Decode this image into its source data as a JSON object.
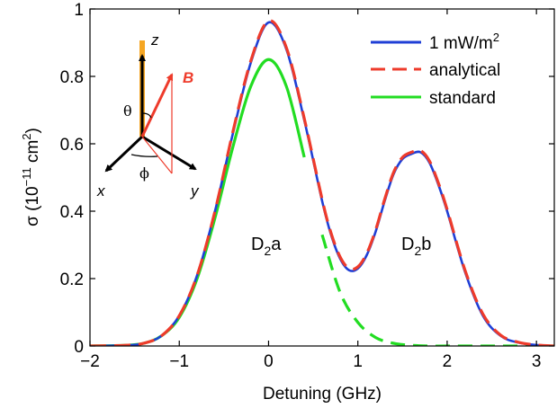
{
  "chart_data": {
    "type": "line",
    "xlabel": "Detuning (GHz)",
    "ylabel": "σ  (10^−11 cm^2)",
    "ylabel_parts": {
      "pre": "σ  (10",
      "exp1": "−11",
      "mid": " cm",
      "exp2": "2",
      "post": ")"
    },
    "xlim": [
      -2,
      3.2
    ],
    "ylim": [
      0,
      1
    ],
    "xticks": [
      -2,
      -1,
      0,
      1,
      2,
      3
    ],
    "xtick_labels": [
      "−2",
      "−1",
      "0",
      "1",
      "2",
      "3"
    ],
    "yticks": [
      0,
      0.2,
      0.4,
      0.6,
      0.8,
      1
    ],
    "ytick_labels": [
      "0",
      "0.2",
      "0.4",
      "0.6",
      "0.8",
      "1"
    ],
    "grid": false,
    "legend_position": "top-right",
    "series": [
      {
        "name": "1 mW/m^2",
        "legend_parts": {
          "base": "1 mW/m",
          "sup": "2"
        },
        "color": "#1f3fd6",
        "style": "solid",
        "x": [
          -2.0,
          -1.6,
          -1.4,
          -1.2,
          -1.0,
          -0.8,
          -0.6,
          -0.4,
          -0.2,
          0.0,
          0.2,
          0.4,
          0.6,
          0.7,
          0.8,
          0.9,
          1.0,
          1.1,
          1.2,
          1.3,
          1.4,
          1.5,
          1.6,
          1.7,
          1.8,
          1.9,
          2.0,
          2.2,
          2.4,
          2.6,
          2.8,
          3.0,
          3.2
        ],
        "y": [
          0.0,
          0.002,
          0.008,
          0.03,
          0.09,
          0.21,
          0.4,
          0.63,
          0.84,
          0.96,
          0.88,
          0.67,
          0.43,
          0.33,
          0.26,
          0.225,
          0.23,
          0.27,
          0.34,
          0.43,
          0.51,
          0.555,
          0.57,
          0.575,
          0.545,
          0.48,
          0.4,
          0.22,
          0.09,
          0.03,
          0.01,
          0.003,
          0.0
        ]
      },
      {
        "name": "analytical",
        "color": "#ee3b2b",
        "style": "dashed",
        "x": [
          -2.0,
          -1.6,
          -1.4,
          -1.2,
          -1.0,
          -0.8,
          -0.6,
          -0.4,
          -0.2,
          0.0,
          0.2,
          0.4,
          0.6,
          0.7,
          0.8,
          0.9,
          1.0,
          1.1,
          1.2,
          1.3,
          1.4,
          1.5,
          1.6,
          1.7,
          1.8,
          1.9,
          2.0,
          2.2,
          2.4,
          2.6,
          2.8,
          3.0,
          3.2
        ],
        "y": [
          0.0,
          0.002,
          0.008,
          0.03,
          0.09,
          0.21,
          0.4,
          0.635,
          0.845,
          0.965,
          0.885,
          0.675,
          0.435,
          0.335,
          0.265,
          0.23,
          0.235,
          0.275,
          0.345,
          0.435,
          0.515,
          0.56,
          0.575,
          0.58,
          0.55,
          0.485,
          0.405,
          0.225,
          0.095,
          0.032,
          0.011,
          0.003,
          0.0
        ]
      },
      {
        "name": "standard",
        "color": "#22dd22",
        "style": "solid-then-dashed",
        "x": [
          -2.0,
          -1.6,
          -1.4,
          -1.2,
          -1.0,
          -0.8,
          -0.6,
          -0.4,
          -0.2,
          0.0,
          0.2,
          0.4,
          0.6,
          0.8,
          1.0,
          1.2,
          1.4,
          1.6,
          1.8,
          2.0,
          2.4,
          2.8,
          3.2
        ],
        "y": [
          0.0,
          0.002,
          0.008,
          0.03,
          0.085,
          0.2,
          0.38,
          0.59,
          0.77,
          0.85,
          0.77,
          0.56,
          0.33,
          0.16,
          0.07,
          0.025,
          0.008,
          0.002,
          0.0,
          0.0,
          0.0,
          0.0,
          0.0
        ],
        "dash_from_x": 0.55
      }
    ],
    "annotations": [
      {
        "text_base": "D",
        "text_sub": "2",
        "text_post": "a",
        "x": 0.0,
        "y": 0.29
      },
      {
        "text_base": "D",
        "text_sub": "2",
        "text_post": "b",
        "x": 1.7,
        "y": 0.29
      }
    ],
    "inset": {
      "axis_labels": {
        "z": "z",
        "x": "x",
        "y": "y",
        "B": "B"
      },
      "angle_labels": {
        "theta": "θ",
        "phi": "ϕ"
      }
    }
  }
}
